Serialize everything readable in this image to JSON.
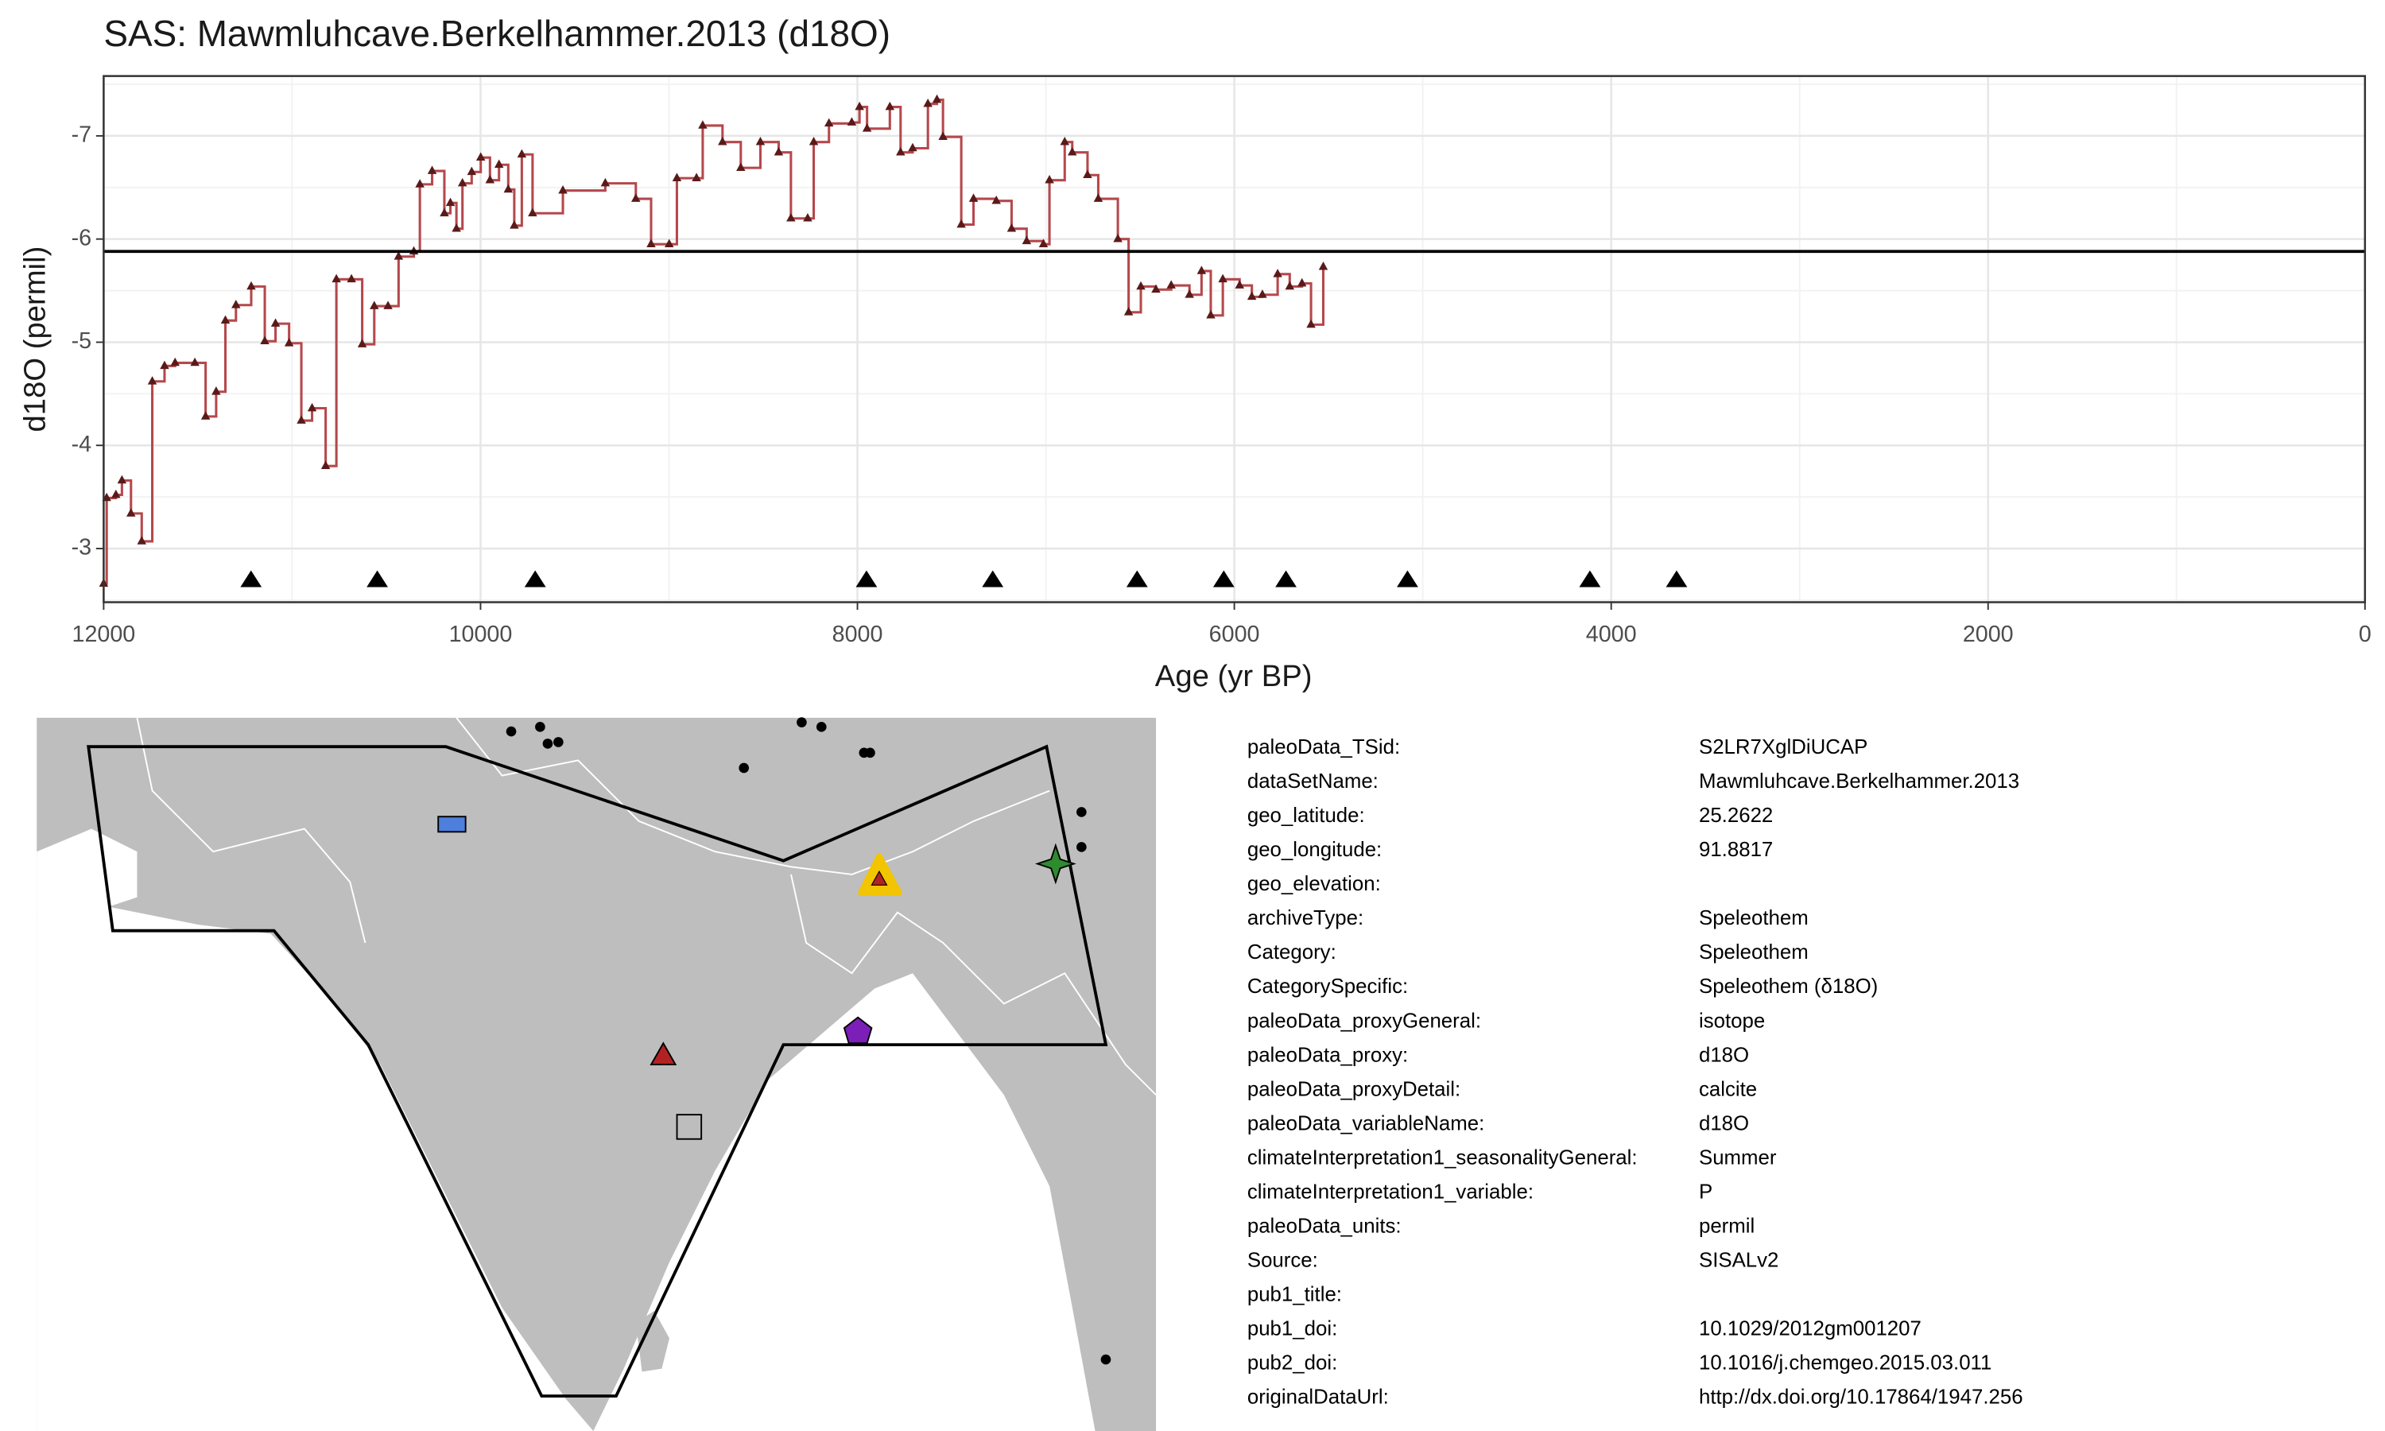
{
  "chart_data": {
    "type": "line",
    "title": "SAS: Mawmluhcave.Berkelhammer.2013 (d18O)",
    "x_label": "Age (yr BP)",
    "y_label": "d18O (permil)",
    "x": [
      12000,
      11984,
      11935,
      11903,
      11855,
      11798,
      11742,
      11677,
      11621,
      11516,
      11459,
      11403,
      11354,
      11298,
      11217,
      11145,
      11088,
      11016,
      10951,
      10894,
      10822,
      10765,
      10685,
      10628,
      10564,
      10491,
      10435,
      10354,
      10322,
      10257,
      10192,
      10160,
      10128,
      10096,
      10047,
      9999,
      9950,
      9902,
      9853,
      9821,
      9781,
      9724,
      9563,
      9338,
      9176,
      9095,
      8999,
      8958,
      8854,
      8821,
      8716,
      8619,
      8515,
      8418,
      8353,
      8264,
      8232,
      8151,
      8030,
      7989,
      7949,
      7828,
      7771,
      7707,
      7626,
      7578,
      7546,
      7449,
      7384,
      7263,
      7182,
      7102,
      7013,
      6981,
      6900,
      6860,
      6779,
      6722,
      6618,
      6561,
      6496,
      6416,
      6335,
      6238,
      6174,
      6125,
      6061,
      5972,
      5907,
      5851,
      5770,
      5706,
      5641,
      5593,
      5528
    ],
    "values": [
      -2.66,
      -3.49,
      -3.52,
      -3.66,
      -3.34,
      -3.07,
      -4.62,
      -4.77,
      -4.8,
      -4.8,
      -4.28,
      -4.52,
      -5.21,
      -5.36,
      -5.54,
      -5.01,
      -5.18,
      -4.99,
      -4.24,
      -4.36,
      -3.8,
      -5.61,
      -5.61,
      -4.98,
      -5.35,
      -5.35,
      -5.83,
      -5.88,
      -6.53,
      -6.66,
      -6.25,
      -6.35,
      -6.1,
      -6.54,
      -6.65,
      -6.79,
      -6.57,
      -6.72,
      -6.48,
      -6.13,
      -6.82,
      -6.25,
      -6.47,
      -6.54,
      -6.39,
      -5.95,
      -5.95,
      -6.59,
      -6.59,
      -7.1,
      -6.94,
      -6.69,
      -6.94,
      -6.84,
      -6.2,
      -6.2,
      -6.94,
      -7.12,
      -7.13,
      -7.28,
      -7.07,
      -7.28,
      -6.84,
      -6.88,
      -7.31,
      -7.35,
      -6.99,
      -6.14,
      -6.39,
      -6.37,
      -6.1,
      -5.98,
      -5.95,
      -6.57,
      -6.94,
      -6.84,
      -6.62,
      -6.39,
      -6,
      -5.29,
      -5.54,
      -5.51,
      -5.55,
      -5.46,
      -5.69,
      -5.26,
      -5.61,
      -5.55,
      -5.44,
      -5.46,
      -5.66,
      -5.54,
      -5.57,
      -5.17,
      -5.73
    ],
    "color": "#b5484c",
    "point_color": "#5a1a1a",
    "mean_line": -5.88,
    "age_markers": [
      11218,
      10548,
      9710,
      7952,
      7282,
      6516,
      6056,
      5726,
      5081,
      4113,
      3653
    ],
    "age_marker_y": -2.7,
    "xlim": [
      12000,
      0
    ],
    "ylim": [
      -2.48,
      -7.58
    ],
    "xticks": [
      12000,
      10000,
      8000,
      6000,
      4000,
      2000,
      0
    ],
    "yticks": [
      -7,
      -6,
      -5,
      -4,
      -3
    ],
    "x_minor_ticks": [
      11000,
      9000,
      7000,
      5000,
      3000,
      1000
    ],
    "y_minor_ticks": [
      -7.5,
      -6.5,
      -5.5,
      -4.5,
      -3.5,
      -2.5
    ],
    "grid": true
  },
  "table": {
    "rows": [
      [
        "paleoData_TSid:",
        "S2LR7XglDiUCAP"
      ],
      [
        "dataSetName:",
        "Mawmluhcave.Berkelhammer.2013"
      ],
      [
        "geo_latitude:",
        "25.2622"
      ],
      [
        "geo_longitude:",
        "91.8817"
      ],
      [
        "geo_elevation:"
      ],
      [
        "archiveType:",
        "Speleothem"
      ],
      [
        "Category:",
        "Speleothem"
      ],
      [
        "CategorySpecific:",
        "Speleothem (δ18O)"
      ],
      [
        "paleoData_proxyGeneral:",
        "isotope"
      ],
      [
        "paleoData_proxy:",
        "d18O"
      ],
      [
        "paleoData_proxyDetail:",
        "calcite"
      ],
      [
        "paleoData_variableName:",
        "d18O"
      ],
      [
        "climateInterpretation1_seasonalityGeneral:",
        "Summer"
      ],
      [
        "climateInterpretation1_variable:",
        "P"
      ],
      [
        "paleoData_units:",
        "permil"
      ],
      [
        "Source:",
        "SISALv2"
      ],
      [
        "pub1_title:"
      ],
      [
        "pub1_doi:",
        "10.1029/2012gm001207"
      ],
      [
        "pub2_doi:",
        "10.1016/j.chemgeo.2015.03.011"
      ],
      [
        "originalDataUrl:",
        "http://dx.doi.org/10.17864/1947.256"
      ]
    ]
  }
}
